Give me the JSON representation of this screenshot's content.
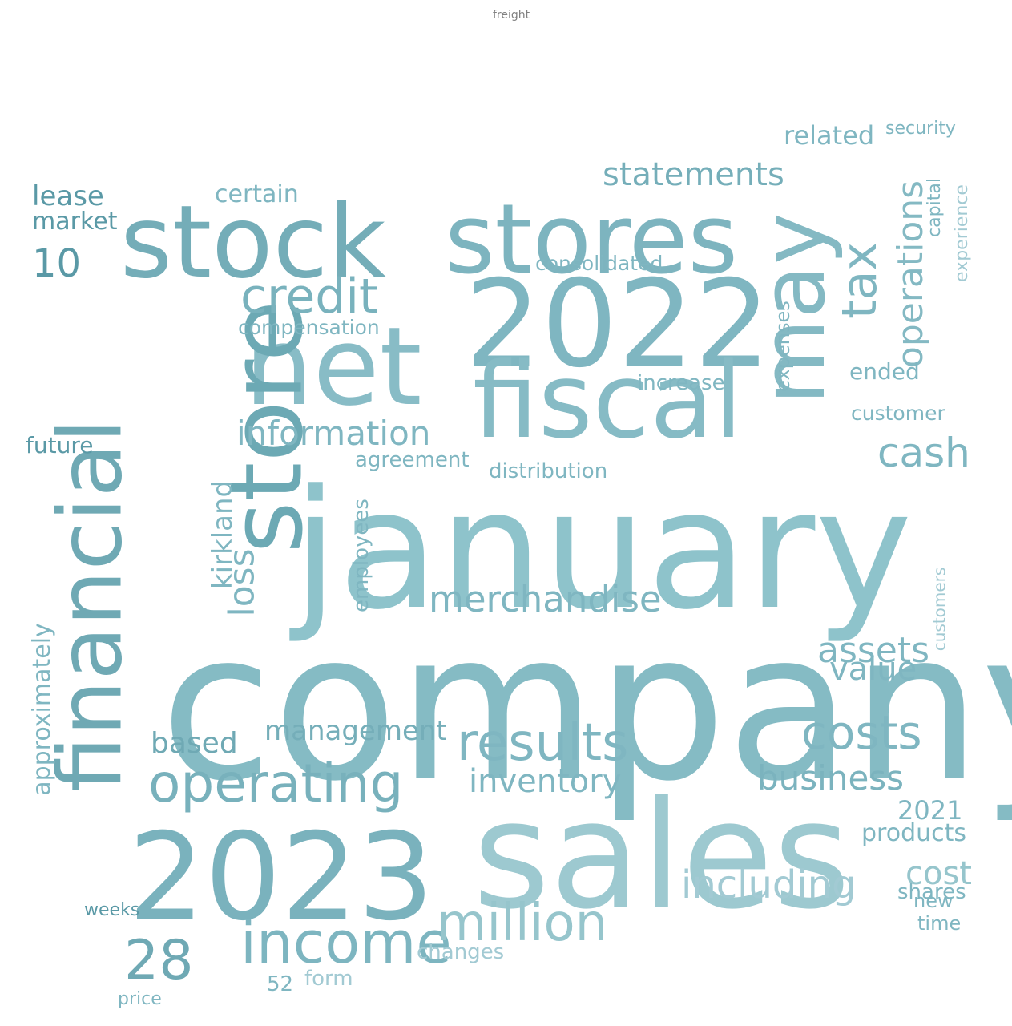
{
  "words": [
    {
      "text": "company",
      "color": "#85bbc4"
    },
    {
      "text": "january",
      "color": "#8ec3cb"
    },
    {
      "text": "sales",
      "color": "#9dc9d0"
    },
    {
      "text": "2023",
      "color": "#7ab2bd"
    },
    {
      "text": "2022",
      "color": "#7fb6c1"
    },
    {
      "text": "net",
      "color": "#88bcc6"
    },
    {
      "text": "fiscal",
      "color": "#86bbc5"
    },
    {
      "text": "stock",
      "color": "#74adb8"
    },
    {
      "text": "stores",
      "color": "#7db4bf"
    },
    {
      "text": "store",
      "color": "#6ca9b4"
    },
    {
      "text": "financial",
      "color": "#6fa9b4"
    },
    {
      "text": "may",
      "color": "#84b9c3"
    },
    {
      "text": "income",
      "color": "#7db5c0"
    },
    {
      "text": "million",
      "color": "#96c5cc"
    },
    {
      "text": "results",
      "color": "#7fb6c1"
    },
    {
      "text": "costs",
      "color": "#7fb6c1"
    },
    {
      "text": "including",
      "color": "#a2cad3"
    },
    {
      "text": "merchandise",
      "color": "#7fb6c1"
    },
    {
      "text": "operating",
      "color": "#78b1bc"
    },
    {
      "text": "credit",
      "color": "#79b2bd"
    },
    {
      "text": "tax",
      "color": "#7fb6c1"
    },
    {
      "text": "28",
      "color": "#6fa9b4"
    },
    {
      "text": "information",
      "color": "#7fb6c1"
    },
    {
      "text": "statements",
      "color": "#75aeb9"
    },
    {
      "text": "cash",
      "color": "#7fb6c1"
    },
    {
      "text": "operations",
      "color": "#84b9c3"
    },
    {
      "text": "business",
      "color": "#7bb3be"
    },
    {
      "text": "inventory",
      "color": "#7fb6c1"
    },
    {
      "text": "assets",
      "color": "#7fb6c1"
    },
    {
      "text": "value",
      "color": "#7fb6c1"
    },
    {
      "text": "cost",
      "color": "#96c5cc"
    },
    {
      "text": "management",
      "color": "#75aeb9"
    },
    {
      "text": "based",
      "color": "#6fa9b4"
    },
    {
      "text": "loss",
      "color": "#7fb6c1"
    },
    {
      "text": "kirkland",
      "color": "#7fb6c1"
    },
    {
      "text": "10",
      "color": "#5a99a6"
    },
    {
      "text": "lease",
      "color": "#5a99a6"
    },
    {
      "text": "market",
      "color": "#5a99a6"
    },
    {
      "text": "certain",
      "color": "#7fb6c1"
    },
    {
      "text": "related",
      "color": "#7fb6c1"
    },
    {
      "text": "compensation",
      "color": "#7fb6c1"
    },
    {
      "text": "consolidated",
      "color": "#7fb6c1"
    },
    {
      "text": "agreement",
      "color": "#7fb6c1"
    },
    {
      "text": "distribution",
      "color": "#7fb6c1"
    },
    {
      "text": "increase",
      "color": "#7fb6c1"
    },
    {
      "text": "ended",
      "color": "#7fb6c1"
    },
    {
      "text": "customer",
      "color": "#7fb6c1"
    },
    {
      "text": "approximately",
      "color": "#7fb6c1"
    },
    {
      "text": "future",
      "color": "#5a99a6"
    },
    {
      "text": "2021",
      "color": "#7fb6c1"
    },
    {
      "text": "products",
      "color": "#7fb6c1"
    },
    {
      "text": "changes",
      "color": "#a2cad3"
    },
    {
      "text": "form",
      "color": "#a2cad3"
    },
    {
      "text": "weeks",
      "color": "#5a99a6"
    },
    {
      "text": "price",
      "color": "#7fb6c1"
    },
    {
      "text": "52",
      "color": "#7fb6c1"
    },
    {
      "text": "employees",
      "color": "#7fb6c1"
    },
    {
      "text": "security",
      "color": "#7fb6c1"
    },
    {
      "text": "expenses",
      "color": "#7fb6c1"
    },
    {
      "text": "customers",
      "color": "#a2cad3"
    },
    {
      "text": "experience",
      "color": "#a2cad3"
    },
    {
      "text": "capital",
      "color": "#7fb6c1"
    },
    {
      "text": "shares",
      "color": "#7fb6c1"
    },
    {
      "text": "new",
      "color": "#7fb6c1"
    },
    {
      "text": "time",
      "color": "#7fb6c1"
    },
    {
      "text": "freight",
      "color": "#808080"
    }
  ]
}
